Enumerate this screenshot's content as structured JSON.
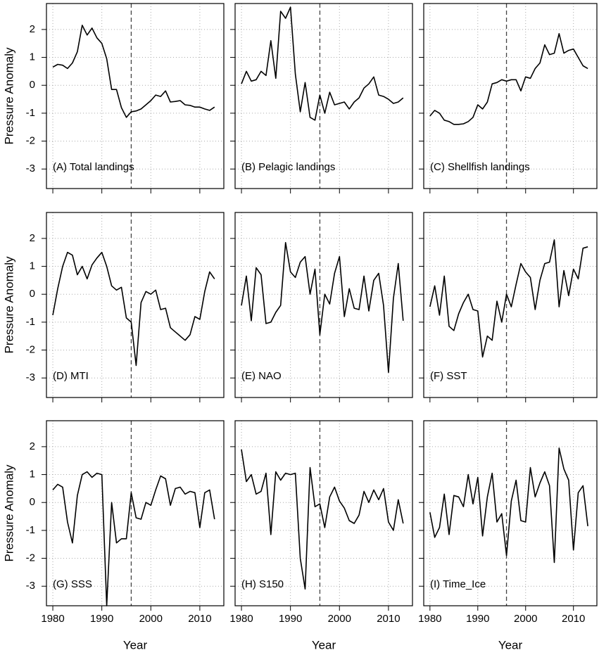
{
  "chart_data": [
    {
      "type": "line",
      "title": "(A) Total landings",
      "ylabel": "Pressure Anomaly",
      "color": "#000000",
      "x": [
        1980,
        1981,
        1982,
        1983,
        1984,
        1985,
        1986,
        1987,
        1988,
        1989,
        1990,
        1991,
        1992,
        1993,
        1994,
        1995,
        1996,
        1997,
        1998,
        1999,
        2000,
        2001,
        2002,
        2003,
        2004,
        2005,
        2006,
        2007,
        2008,
        2009,
        2010,
        2011,
        2012,
        2013
      ],
      "values": [
        0.65,
        0.75,
        0.72,
        0.6,
        0.8,
        1.2,
        2.15,
        1.8,
        2.05,
        1.7,
        1.5,
        0.95,
        -0.15,
        -0.15,
        -0.8,
        -1.15,
        -0.95,
        -0.92,
        -0.85,
        -0.7,
        -0.55,
        -0.35,
        -0.4,
        -0.2,
        -0.6,
        -0.58,
        -0.55,
        -0.7,
        -0.72,
        -0.78,
        -0.78,
        -0.85,
        -0.9,
        -0.78
      ],
      "xlim": [
        1978.7,
        2014.9
      ],
      "ylim": [
        -3.7,
        2.93
      ],
      "xticks": [
        1980,
        1990,
        2000,
        2010
      ],
      "yticks": [
        -3,
        -2,
        -1,
        0,
        1,
        2
      ],
      "grid": true,
      "vline": 1996
    },
    {
      "type": "line",
      "title": "(B) Pelagic landings",
      "color": "#000000",
      "x": [
        1980,
        1981,
        1982,
        1983,
        1984,
        1985,
        1986,
        1987,
        1988,
        1989,
        1990,
        1991,
        1992,
        1993,
        1994,
        1995,
        1996,
        1997,
        1998,
        1999,
        2000,
        2001,
        2002,
        2003,
        2004,
        2005,
        2006,
        2007,
        2008,
        2009,
        2010,
        2011,
        2012,
        2013
      ],
      "values": [
        0.05,
        0.5,
        0.15,
        0.2,
        0.5,
        0.35,
        1.6,
        0.25,
        2.65,
        2.4,
        2.8,
        0.4,
        -0.95,
        0.1,
        -1.15,
        -1.25,
        -0.35,
        -1.0,
        -0.25,
        -0.7,
        -0.65,
        -0.6,
        -0.85,
        -0.6,
        -0.45,
        -0.1,
        0.05,
        0.3,
        -0.35,
        -0.4,
        -0.5,
        -0.65,
        -0.6,
        -0.45
      ],
      "xlim": [
        1978.7,
        2014.9
      ],
      "ylim": [
        -3.7,
        2.93
      ],
      "xticks": [
        1980,
        1990,
        2000,
        2010
      ],
      "yticks": [
        -3,
        -2,
        -1,
        0,
        1,
        2
      ],
      "grid": true,
      "vline": 1996
    },
    {
      "type": "line",
      "title": "(C) Shellfish landings",
      "color": "#000000",
      "x": [
        1980,
        1981,
        1982,
        1983,
        1984,
        1985,
        1986,
        1987,
        1988,
        1989,
        1990,
        1991,
        1992,
        1993,
        1994,
        1995,
        1996,
        1997,
        1998,
        1999,
        2000,
        2001,
        2002,
        2003,
        2004,
        2005,
        2006,
        2007,
        2008,
        2009,
        2010,
        2011,
        2012,
        2013
      ],
      "values": [
        -1.1,
        -0.9,
        -1.0,
        -1.25,
        -1.3,
        -1.4,
        -1.4,
        -1.38,
        -1.3,
        -1.15,
        -0.7,
        -0.85,
        -0.6,
        0.05,
        0.1,
        0.2,
        0.15,
        0.2,
        0.2,
        -0.2,
        0.3,
        0.25,
        0.6,
        0.8,
        1.45,
        1.1,
        1.15,
        1.85,
        1.15,
        1.25,
        1.3,
        1.0,
        0.7,
        0.6
      ],
      "xlim": [
        1978.7,
        2014.9
      ],
      "ylim": [
        -3.7,
        2.93
      ],
      "xticks": [
        1980,
        1990,
        2000,
        2010
      ],
      "yticks": [
        -3,
        -2,
        -1,
        0,
        1,
        2
      ],
      "grid": true,
      "vline": 1996
    },
    {
      "type": "line",
      "title": "(D) MTI",
      "ylabel": "Pressure Anomaly",
      "color": "#000000",
      "x": [
        1980,
        1981,
        1982,
        1983,
        1984,
        1985,
        1986,
        1987,
        1988,
        1989,
        1990,
        1991,
        1992,
        1993,
        1994,
        1995,
        1996,
        1997,
        1998,
        1999,
        2000,
        2001,
        2002,
        2003,
        2004,
        2005,
        2006,
        2007,
        2008,
        2009,
        2010,
        2011,
        2012,
        2013
      ],
      "values": [
        -0.75,
        0.2,
        1.0,
        1.5,
        1.4,
        0.7,
        1.0,
        0.55,
        1.05,
        1.3,
        1.5,
        1.0,
        0.3,
        0.15,
        0.25,
        -0.85,
        -1.0,
        -2.55,
        -0.3,
        0.1,
        0.0,
        0.15,
        -0.55,
        -0.5,
        -1.2,
        -1.35,
        -1.5,
        -1.65,
        -1.45,
        -0.8,
        -0.9,
        0.1,
        0.8,
        0.55
      ],
      "xlim": [
        1978.7,
        2014.9
      ],
      "ylim": [
        -3.7,
        2.93
      ],
      "xticks": [
        1980,
        1990,
        2000,
        2010
      ],
      "yticks": [
        -3,
        -2,
        -1,
        0,
        1,
        2
      ],
      "grid": true,
      "vline": 1996
    },
    {
      "type": "line",
      "title": "(E) NAO",
      "color": "#000000",
      "x": [
        1980,
        1981,
        1982,
        1983,
        1984,
        1985,
        1986,
        1987,
        1988,
        1989,
        1990,
        1991,
        1992,
        1993,
        1994,
        1995,
        1996,
        1997,
        1998,
        1999,
        2000,
        2001,
        2002,
        2003,
        2004,
        2005,
        2006,
        2007,
        2008,
        2009,
        2010,
        2011,
        2012,
        2013
      ],
      "values": [
        -0.4,
        0.65,
        -0.95,
        0.95,
        0.7,
        -1.05,
        -1.0,
        -0.65,
        -0.4,
        1.85,
        0.8,
        0.6,
        1.15,
        1.35,
        0.0,
        0.9,
        -1.45,
        0.0,
        -0.35,
        0.75,
        1.35,
        -0.8,
        0.2,
        -0.5,
        -0.55,
        0.65,
        -0.6,
        0.5,
        0.75,
        -0.4,
        -2.8,
        -0.15,
        1.1,
        -0.95
      ],
      "xlim": [
        1978.7,
        2014.9
      ],
      "ylim": [
        -3.7,
        2.93
      ],
      "xticks": [
        1980,
        1990,
        2000,
        2010
      ],
      "yticks": [
        -3,
        -2,
        -1,
        0,
        1,
        2
      ],
      "grid": true,
      "vline": 1996
    },
    {
      "type": "line",
      "title": "(F) SST",
      "color": "#000000",
      "x": [
        1980,
        1981,
        1982,
        1983,
        1984,
        1985,
        1986,
        1987,
        1988,
        1989,
        1990,
        1991,
        1992,
        1993,
        1994,
        1995,
        1996,
        1997,
        1998,
        1999,
        2000,
        2001,
        2002,
        2003,
        2004,
        2005,
        2006,
        2007,
        2008,
        2009,
        2010,
        2011,
        2012,
        2013
      ],
      "values": [
        -0.45,
        0.3,
        -0.75,
        0.65,
        -1.15,
        -1.3,
        -0.7,
        -0.3,
        0.0,
        -0.55,
        -0.6,
        -2.25,
        -1.5,
        -1.65,
        -0.25,
        -1.0,
        0.0,
        -0.45,
        0.35,
        1.1,
        0.8,
        0.6,
        -0.55,
        0.5,
        1.1,
        1.15,
        1.95,
        -0.45,
        0.85,
        -0.05,
        0.9,
        0.55,
        1.65,
        1.7
      ],
      "xlim": [
        1978.7,
        2014.9
      ],
      "ylim": [
        -3.7,
        2.93
      ],
      "xticks": [
        1980,
        1990,
        2000,
        2010
      ],
      "yticks": [
        -3,
        -2,
        -1,
        0,
        1,
        2
      ],
      "grid": true,
      "vline": 1996
    },
    {
      "type": "line",
      "title": "(G) SSS",
      "ylabel": "Pressure Anomaly",
      "xlabel": "Year",
      "color": "#000000",
      "x": [
        1980,
        1981,
        1982,
        1983,
        1984,
        1985,
        1986,
        1987,
        1988,
        1989,
        1990,
        1991,
        1992,
        1993,
        1994,
        1995,
        1996,
        1997,
        1998,
        1999,
        2000,
        2001,
        2002,
        2003,
        2004,
        2005,
        2006,
        2007,
        2008,
        2009,
        2010,
        2011,
        2012,
        2013
      ],
      "values": [
        0.45,
        0.65,
        0.55,
        -0.7,
        -1.45,
        0.25,
        1.0,
        1.1,
        0.9,
        1.05,
        1.0,
        -3.7,
        0.0,
        -1.45,
        -1.3,
        -1.3,
        0.35,
        -0.55,
        -0.6,
        0.0,
        -0.1,
        0.45,
        0.95,
        0.85,
        -0.1,
        0.5,
        0.55,
        0.3,
        0.4,
        0.35,
        -0.9,
        0.35,
        0.45,
        -0.6
      ],
      "xlim": [
        1978.7,
        2014.9
      ],
      "ylim": [
        -3.7,
        2.93
      ],
      "xticks": [
        1980,
        1990,
        2000,
        2010
      ],
      "yticks": [
        -3,
        -2,
        -1,
        0,
        1,
        2
      ],
      "grid": true,
      "vline": 1996
    },
    {
      "type": "line",
      "title": "(H) S150",
      "xlabel": "Year",
      "color": "#000000",
      "x": [
        1980,
        1981,
        1982,
        1983,
        1984,
        1985,
        1986,
        1987,
        1988,
        1989,
        1990,
        1991,
        1992,
        1993,
        1994,
        1995,
        1996,
        1997,
        1998,
        1999,
        2000,
        2001,
        2002,
        2003,
        2004,
        2005,
        2006,
        2007,
        2008,
        2009,
        2010,
        2011,
        2012,
        2013
      ],
      "values": [
        1.9,
        0.75,
        1.0,
        0.3,
        0.4,
        1.05,
        -1.15,
        1.1,
        0.8,
        1.05,
        1.0,
        1.05,
        -2.0,
        -3.1,
        1.25,
        -0.15,
        -0.05,
        -0.9,
        0.2,
        0.55,
        0.05,
        -0.2,
        -0.65,
        -0.75,
        -0.45,
        0.4,
        0.0,
        0.45,
        0.1,
        0.5,
        -0.7,
        -1.0,
        0.1,
        -0.75
      ],
      "xlim": [
        1978.7,
        2014.9
      ],
      "ylim": [
        -3.7,
        2.93
      ],
      "xticks": [
        1980,
        1990,
        2000,
        2010
      ],
      "yticks": [
        -3,
        -2,
        -1,
        0,
        1,
        2
      ],
      "grid": true,
      "vline": 1996
    },
    {
      "type": "line",
      "title": "(I) Time_Ice",
      "xlabel": "Year",
      "color": "#000000",
      "x": [
        1980,
        1981,
        1982,
        1983,
        1984,
        1985,
        1986,
        1987,
        1988,
        1989,
        1990,
        1991,
        1992,
        1993,
        1994,
        1995,
        1996,
        1997,
        1998,
        1999,
        2000,
        2001,
        2002,
        2003,
        2004,
        2005,
        2006,
        2007,
        2008,
        2009,
        2010,
        2011,
        2012,
        2013
      ],
      "values": [
        -0.35,
        -1.25,
        -0.9,
        0.3,
        -1.15,
        0.25,
        0.2,
        -0.15,
        1.0,
        -0.05,
        0.9,
        -1.2,
        0.2,
        1.05,
        -0.7,
        -0.4,
        -1.9,
        0.05,
        0.8,
        -0.65,
        -0.7,
        1.25,
        0.2,
        0.7,
        1.1,
        0.6,
        -2.15,
        1.95,
        1.2,
        0.8,
        -1.7,
        0.35,
        0.6,
        -0.85
      ],
      "xlim": [
        1978.7,
        2014.9
      ],
      "ylim": [
        -3.7,
        2.93
      ],
      "xticks": [
        1980,
        1990,
        2000,
        2010
      ],
      "yticks": [
        -3,
        -2,
        -1,
        0,
        1,
        2
      ],
      "grid": true,
      "vline": 1996
    }
  ]
}
